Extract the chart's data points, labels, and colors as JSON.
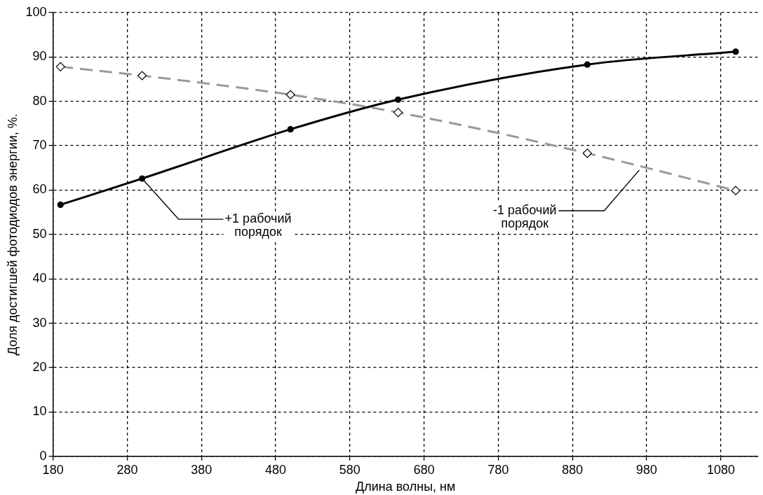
{
  "chart_data": {
    "type": "line",
    "xlabel": "Длина волны, нм",
    "ylabel": "Доля достигшей фотодиодов энергии, %.",
    "x": [
      190,
      300,
      500,
      645,
      900,
      1100
    ],
    "series": [
      {
        "color": "#000000",
        "values": [
          56.7,
          62.6,
          73.7,
          80.4,
          88.3,
          91.2
        ],
        "marker": "circle",
        "line_style": "solid"
      },
      {
        "color": "#999999",
        "values": [
          87.8,
          85.8,
          81.5,
          77.5,
          68.3,
          59.9
        ],
        "marker": "diamond",
        "line_style": "dashed"
      }
    ],
    "xlim": [
      180,
      1130
    ],
    "xticks": [
      180,
      280,
      380,
      480,
      580,
      680,
      780,
      880,
      980,
      1080
    ],
    "ylim": [
      0,
      100
    ],
    "yticks": [
      0,
      10,
      20,
      30,
      40,
      50,
      60,
      70,
      80,
      90,
      100
    ],
    "grid": true,
    "legend": false,
    "annotations": [
      {
        "text": "+1 рабочий\nпорядок",
        "x": 300,
        "y": 62.6
      },
      {
        "text": "-1 рабочий\nпорядок",
        "x": 970,
        "y": 64.5
      }
    ]
  }
}
